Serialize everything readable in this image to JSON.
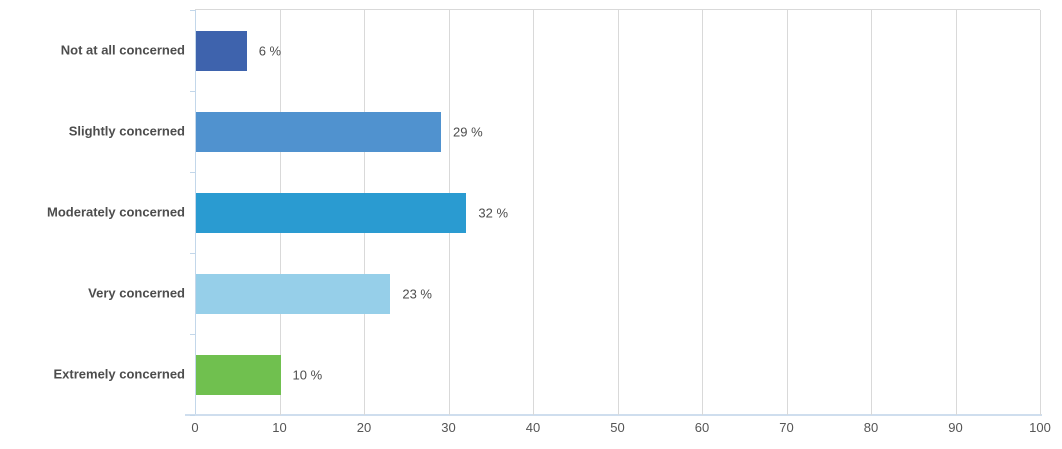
{
  "chart_data": {
    "type": "bar",
    "orientation": "horizontal",
    "title": "",
    "xlabel": "",
    "ylabel": "",
    "categories": [
      "Not at all concerned",
      "Slightly concerned",
      "Moderately concerned",
      "Very concerned",
      "Extremely concerned"
    ],
    "values": [
      6,
      29,
      32,
      23,
      10
    ],
    "value_labels": [
      "6 %",
      "29 %",
      "32 %",
      "23 %",
      "10 %"
    ],
    "bar_colors": [
      "#3e63ad",
      "#5092cf",
      "#2a9bd1",
      "#96cfe9",
      "#70c04f"
    ],
    "xlim": [
      0,
      100
    ],
    "x_ticks": [
      0,
      10,
      20,
      30,
      40,
      50,
      60,
      70,
      80,
      90,
      100
    ],
    "grid": "vertical",
    "legend_position": "none",
    "colors": {
      "gridline": "#d9d9d9",
      "axis_line": "#c3d7ea",
      "category_text": "#4d4d4d",
      "value_text": "#4d4d4d",
      "tick_text": "#555555",
      "background": "#ffffff"
    }
  }
}
